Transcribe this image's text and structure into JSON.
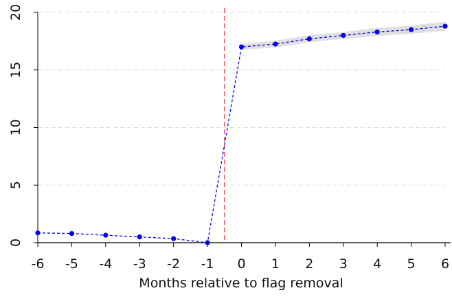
{
  "chart_data": {
    "type": "line",
    "title": "",
    "xlabel": "Months relative to flag removal",
    "ylabel": "",
    "x": [
      -6,
      -5,
      -4,
      -3,
      -2,
      -1,
      0,
      1,
      2,
      3,
      4,
      5,
      6
    ],
    "x_tick_labels": [
      "-6",
      "-5",
      "-4",
      "-3",
      "-2",
      "-1",
      "0",
      "1",
      "2",
      "3",
      "4",
      "5",
      "6"
    ],
    "y_tick_labels": [
      "0",
      "5",
      "10",
      "15",
      "20"
    ],
    "y_ticks": [
      0,
      5,
      10,
      15,
      20
    ],
    "xlim": [
      -6,
      6
    ],
    "ylim": [
      0,
      20
    ],
    "grid": "horizontal dashed",
    "legend": "none",
    "series": [
      {
        "values": [
          0.85,
          0.8,
          0.65,
          0.5,
          0.35,
          0.0,
          17.0,
          17.25,
          17.7,
          18.0,
          18.3,
          18.5,
          18.8
        ],
        "ci_low": [
          0.85,
          0.8,
          0.65,
          0.5,
          0.35,
          0.0,
          16.75,
          16.95,
          17.4,
          17.7,
          17.95,
          18.15,
          18.4
        ],
        "ci_high": [
          0.85,
          0.8,
          0.65,
          0.5,
          0.35,
          0.0,
          17.25,
          17.55,
          18.0,
          18.3,
          18.65,
          18.85,
          19.2
        ],
        "color": "#0000ee",
        "line_style": "dashed",
        "marker": "circle"
      }
    ],
    "reference_line": {
      "axis": "x",
      "value": -0.5,
      "color": "#e8474f",
      "line_style": "dashed"
    },
    "colors": {
      "band": "#d6d6d6",
      "grid": "#dddddd",
      "axis": "#000000"
    }
  }
}
